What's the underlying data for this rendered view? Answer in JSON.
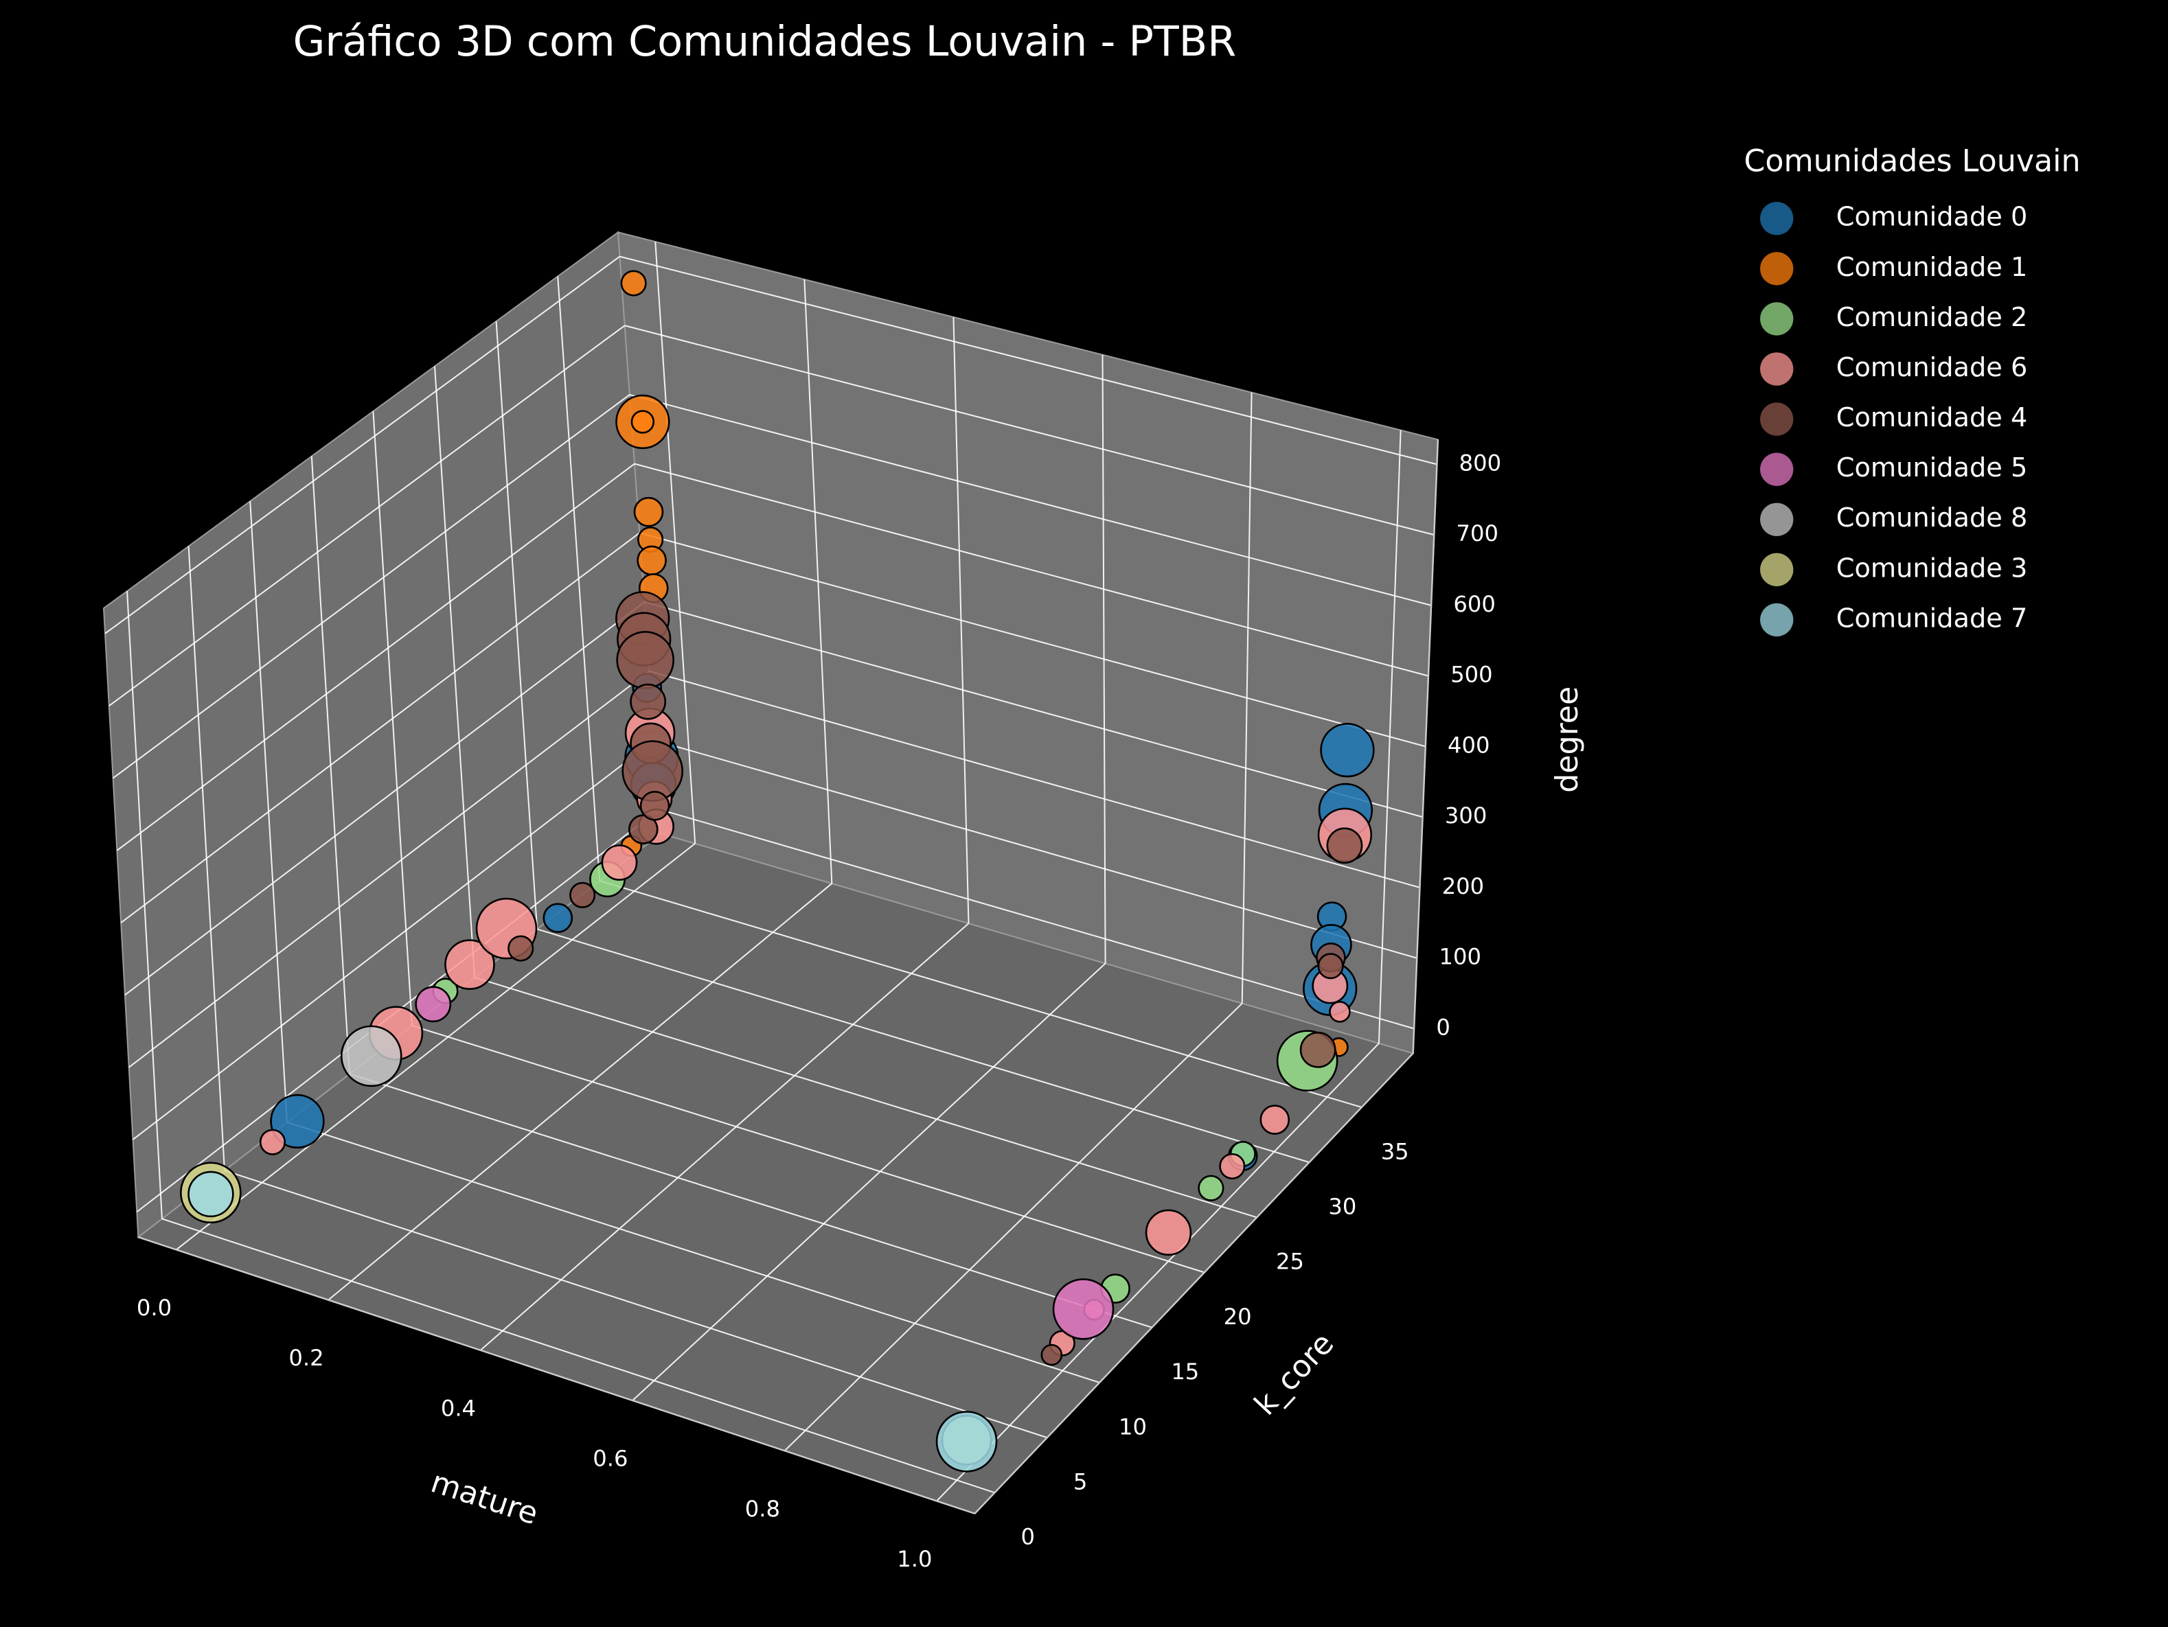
{
  "chart_data": {
    "type": "scatter3d",
    "title": "Gráfico 3D com Comunidades Louvain - PTBR",
    "x_label": "mature",
    "y_label": "k_core",
    "z_label": "degree",
    "legend_title": "Comunidades Louvain",
    "xlim": [
      -0.05,
      1.05
    ],
    "ylim": [
      -1.9,
      39.9
    ],
    "zlim": [
      -35,
      835
    ],
    "xticks": [
      {
        "value": 0,
        "label": "0.0"
      },
      {
        "value": 0.2,
        "label": "0.2"
      },
      {
        "value": 0.4,
        "label": "0.4"
      },
      {
        "value": 0.6,
        "label": "0.6"
      },
      {
        "value": 0.8,
        "label": "0.8"
      },
      {
        "value": 1,
        "label": "1.0"
      }
    ],
    "yticks": [
      0,
      5,
      10,
      15,
      20,
      25,
      30,
      35
    ],
    "zticks": [
      0,
      100,
      200,
      300,
      400,
      500,
      600,
      700,
      800
    ],
    "grid": true,
    "series": [
      {
        "name": "Comunidade 0",
        "color": "#1f77b4",
        "x": [
          0,
          0,
          0,
          0,
          0,
          1,
          1,
          1,
          1,
          1,
          1
        ],
        "y": [
          8,
          29,
          37,
          37,
          37,
          36,
          36,
          35,
          35,
          35,
          27
        ],
        "z": [
          10,
          10,
          230,
          130,
          90,
          440,
          355,
          220,
          180,
          118,
          5
        ],
        "sizes": [
          700,
          200,
          200,
          700,
          500,
          700,
          700,
          200,
          400,
          700,
          200
        ]
      },
      {
        "name": "Comunidade 1",
        "color": "#ff7f0e",
        "x": [
          0,
          0,
          0,
          0,
          0,
          0,
          0,
          0,
          1
        ],
        "y": [
          38,
          38,
          38,
          38,
          38,
          38,
          38,
          35,
          36
        ],
        "z": [
          800,
          600,
          600,
          470,
          430,
          400,
          360,
          30,
          20
        ],
        "sizes": [
          150,
          700,
          120,
          200,
          150,
          200,
          200,
          100,
          80
        ]
      },
      {
        "name": "Comunidade 2",
        "color": "#98df8a",
        "x": [
          0,
          0,
          1,
          1,
          1,
          1
        ],
        "y": [
          20,
          33,
          33,
          27,
          24,
          15
        ],
        "z": [
          30,
          10,
          47,
          8,
          6,
          3
        ],
        "sizes": [
          150,
          300,
          900,
          150,
          150,
          200
        ]
      },
      {
        "name": "Comunidade 6",
        "color": "#ff9896",
        "x": [
          0,
          0,
          0,
          0,
          0,
          0,
          0,
          0,
          1,
          1,
          1,
          1,
          1,
          1,
          1,
          1
        ],
        "y": [
          6,
          16,
          22,
          25,
          34,
          37,
          37,
          37,
          36,
          35,
          36,
          30,
          26,
          20,
          13,
          10
        ],
        "z": [
          8,
          25,
          40,
          50,
          20,
          165,
          70,
          30,
          320,
          122,
          70,
          10,
          6,
          5,
          4,
          3
        ],
        "sizes": [
          150,
          700,
          600,
          900,
          300,
          600,
          300,
          300,
          700,
          300,
          100,
          200,
          150,
          500,
          100,
          150
        ]
      },
      {
        "name": "Comunidade 4",
        "color": "#8c564b",
        "x": [
          0,
          0,
          0,
          0,
          0,
          0,
          0,
          0,
          0,
          0,
          1,
          1,
          1,
          1,
          1
        ],
        "y": [
          26,
          31,
          36,
          37,
          37,
          37,
          37,
          37,
          37,
          37,
          36,
          35,
          35,
          34,
          9
        ],
        "z": [
          8,
          15,
          40,
          330,
          300,
          270,
          210,
          150,
          110,
          60,
          305,
          162,
          150,
          47,
          2
        ],
        "sizes": [
          150,
          150,
          200,
          700,
          700,
          800,
          300,
          400,
          900,
          200,
          300,
          200,
          150,
          300,
          100
        ]
      },
      {
        "name": "Comunidade 5",
        "color": "#e377c2",
        "x": [
          0,
          1
        ],
        "y": [
          19,
          12
        ],
        "z": [
          25,
          20
        ],
        "sizes": [
          300,
          900
        ]
      },
      {
        "name": "Comunidade 8",
        "color": "#c7c7c7",
        "x": [
          0
        ],
        "y": [
          14
        ],
        "z": [
          20
        ],
        "sizes": [
          900
        ]
      },
      {
        "name": "Comunidade 3",
        "color": "#dbdb8d",
        "x": [
          0,
          1
        ],
        "y": [
          1,
          1
        ],
        "z": [
          5,
          5
        ],
        "sizes": [
          900,
          600
        ]
      },
      {
        "name": "Comunidade 7",
        "color": "#9edae5",
        "x": [
          0,
          1
        ],
        "y": [
          1,
          1
        ],
        "z": [
          3,
          3
        ],
        "sizes": [
          500,
          900
        ]
      }
    ]
  }
}
